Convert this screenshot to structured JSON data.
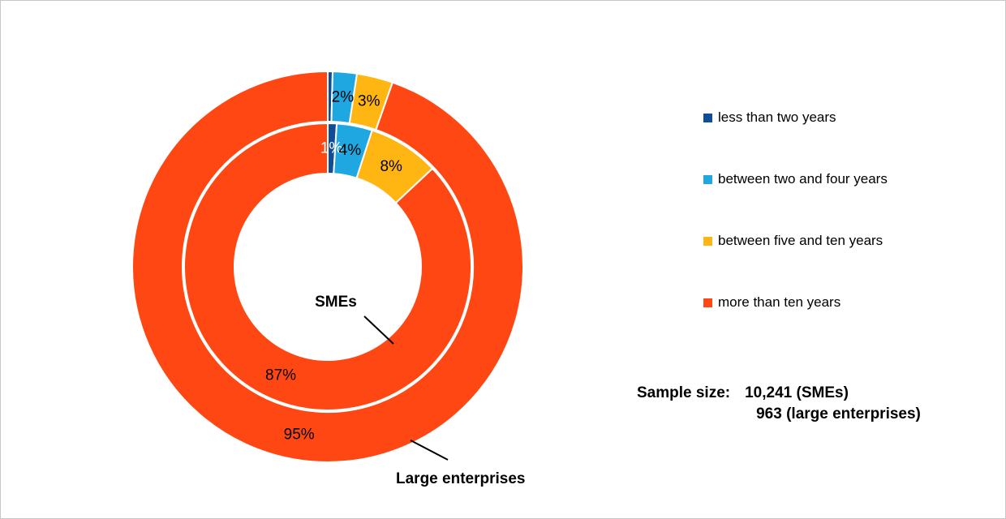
{
  "chart_data": {
    "type": "pie",
    "subtype": "double-donut",
    "title": "",
    "categories": [
      "less than two years",
      "between two and four years",
      "between five and ten years",
      "more than ten years"
    ],
    "colors": [
      "#0F4E96",
      "#1FA7E1",
      "#FFB612",
      "#FF4713"
    ],
    "direction": "clockwise",
    "start_angle_deg": 0,
    "legend_position": "right",
    "series": [
      {
        "name": "SMEs",
        "ring": "inner",
        "values": [
          1,
          4,
          8,
          87
        ],
        "labels": [
          "1%",
          "4%",
          "8%",
          "87%"
        ],
        "label_colors": [
          "#ffffff",
          "#000000",
          "#000000",
          "#000000"
        ]
      },
      {
        "name": "Large enterprises",
        "ring": "outer",
        "values": [
          0,
          2,
          3,
          95
        ],
        "labels": [
          "",
          "2%",
          "3%",
          "95%"
        ],
        "label_colors": [
          "#000000",
          "#000000",
          "#000000",
          "#000000"
        ]
      }
    ],
    "sample_sizes": {
      "SMEs": "10,241",
      "large_enterprises": "963"
    }
  },
  "legend": {
    "items": [
      {
        "label": "less than two years",
        "color": "#0F4E96"
      },
      {
        "label": "between two and four years",
        "color": "#1FA7E1"
      },
      {
        "label": "between five and ten years",
        "color": "#FFB612"
      },
      {
        "label": "more than ten years",
        "color": "#FF4713"
      }
    ]
  },
  "annotations": {
    "smes": "SMEs",
    "large": "Large enterprises"
  },
  "sample_size": {
    "label": "Sample size:",
    "line1": "10,241 (SMEs)",
    "line2": "963 (large enterprises)"
  }
}
